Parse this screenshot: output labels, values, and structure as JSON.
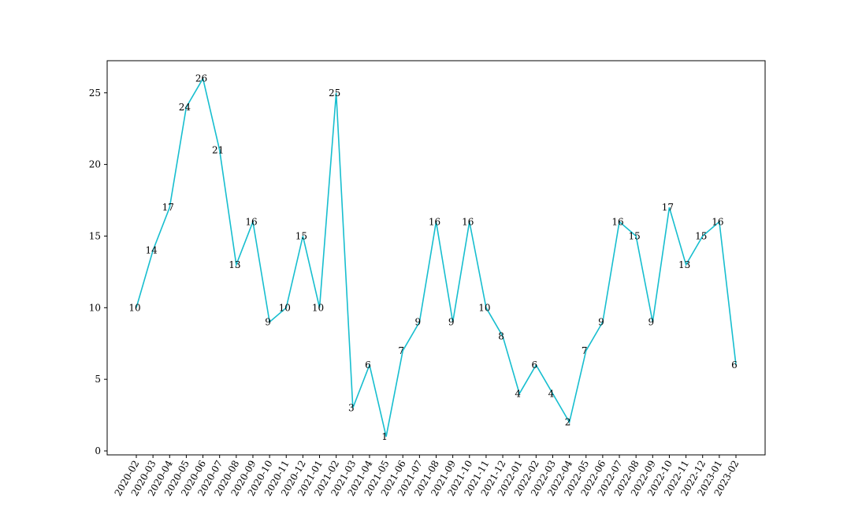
{
  "chart_data": {
    "type": "line",
    "title": "",
    "xlabel": "",
    "ylabel": "",
    "categories": [
      "2020-02",
      "2020-03",
      "2020-04",
      "2020-05",
      "2020-06",
      "2020-07",
      "2020-08",
      "2020-09",
      "2020-10",
      "2020-11",
      "2020-12",
      "2021-01",
      "2021-02",
      "2021-03",
      "2021-04",
      "2021-05",
      "2021-06",
      "2021-07",
      "2021-08",
      "2021-09",
      "2021-10",
      "2021-11",
      "2021-12",
      "2022-01",
      "2022-02",
      "2022-03",
      "2022-04",
      "2022-05",
      "2022-06",
      "2022-07",
      "2022-08",
      "2022-09",
      "2022-10",
      "2022-11",
      "2022-12",
      "2023-01",
      "2023-02"
    ],
    "values": [
      10,
      14,
      17,
      24,
      26,
      21,
      13,
      16,
      9,
      10,
      15,
      10,
      25,
      3,
      6,
      1,
      7,
      9,
      16,
      9,
      16,
      10,
      8,
      4,
      6,
      4,
      2,
      7,
      9,
      16,
      15,
      9,
      17,
      13,
      15,
      16,
      6
    ],
    "ylim": [
      0,
      26
    ],
    "yticks": [
      0,
      5,
      10,
      15,
      20,
      25
    ],
    "grid": false,
    "legend": "none",
    "line_color": "#17becf"
  }
}
